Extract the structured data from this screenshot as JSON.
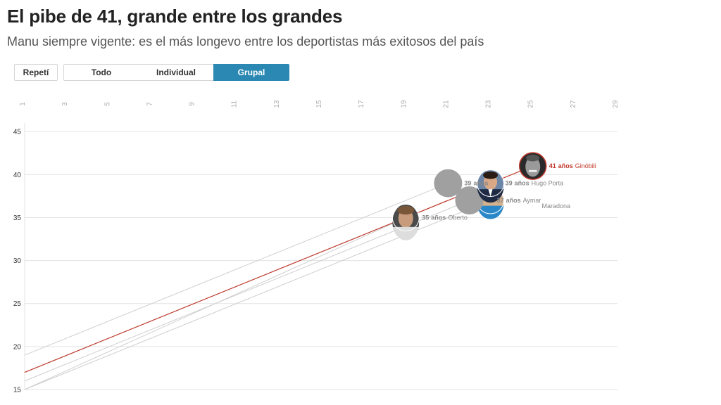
{
  "header": {
    "title": "El pibe de 41, grande entre los grandes",
    "subtitle": "Manu siempre vigente: es el más longevo entre los deportistas más exitosos del país"
  },
  "controls": {
    "replay_label": "Repetí",
    "tabs": [
      {
        "label": "Todo",
        "active": false
      },
      {
        "label": "Individual",
        "active": false
      },
      {
        "label": "Grupal",
        "active": true
      }
    ]
  },
  "colors": {
    "accent": "#2a88b3",
    "highlight": "#c0392b",
    "line": "#cfcfcf",
    "bubble": "#a0a0a0"
  },
  "chart_data": {
    "type": "line",
    "x_ticks": [
      "1",
      "3",
      "5",
      "7",
      "9",
      "11",
      "13",
      "15",
      "17",
      "19",
      "21",
      "23",
      "25",
      "27",
      "29"
    ],
    "xlim": [
      1,
      29
    ],
    "y_ticks": [
      "15",
      "20",
      "25",
      "30",
      "35",
      "40",
      "45"
    ],
    "ylim": [
      15,
      46
    ],
    "grid": true,
    "unit_label": "años",
    "series": [
      {
        "name": "Ginóbili",
        "x": [
          1,
          25
        ],
        "y": [
          17,
          41
        ],
        "end_value": "41",
        "highlight": true,
        "photo": "face-dark"
      },
      {
        "name": "Hugo Porta",
        "x": [
          1,
          23
        ],
        "y": [
          17,
          39
        ],
        "end_value": "39",
        "highlight": false,
        "photo": "face-suit"
      },
      {
        "name": "Aymar",
        "x": [
          1,
          23
        ],
        "y": [
          15,
          37
        ],
        "end_value": "37",
        "highlight": false,
        "photo": "face-hidden"
      },
      {
        "name": "Maradona",
        "x": [
          1,
          22
        ],
        "y": [
          16,
          37
        ],
        "end_value": "",
        "highlight": false,
        "photo": "gray"
      },
      {
        "name": "",
        "x": [
          1,
          21
        ],
        "y": [
          19,
          39
        ],
        "end_value": "39",
        "highlight": false,
        "photo": "gray"
      },
      {
        "name": "Oberto",
        "x": [
          1,
          19
        ],
        "y": [
          15,
          35
        ],
        "end_value": "35",
        "highlight": false,
        "photo": "face-young"
      }
    ]
  }
}
